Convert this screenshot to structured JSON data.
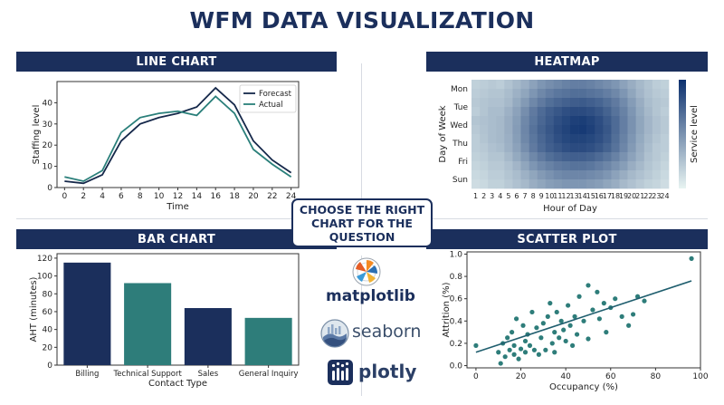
{
  "page": {
    "title": "WFM DATA VISUALIZATION",
    "center_box": "CHOOSE THE RIGHT CHART FOR THE QUESTION"
  },
  "panels": {
    "line": "LINE CHART",
    "heatmap": "HEATMAP",
    "bar": "BAR CHART",
    "scatter": "SCATTER PLOT"
  },
  "logos": {
    "matplotlib": "matplotlib",
    "seaborn": "seaborn",
    "plotly": "plotly"
  },
  "colors": {
    "navy": "#1b2f5c",
    "teal": "#2e7d7a",
    "forecast": "#15284a",
    "actual": "#2a7f7a"
  },
  "chart_data": [
    {
      "type": "line",
      "xlabel": "Time",
      "ylabel": "Staffing level",
      "x": [
        0,
        2,
        4,
        6,
        8,
        10,
        12,
        14,
        16,
        18,
        20,
        22,
        24
      ],
      "xlim": [
        -0.8,
        24.8
      ],
      "ylim": [
        0,
        50
      ],
      "xticks": [
        0,
        2,
        4,
        6,
        8,
        10,
        12,
        14,
        16,
        18,
        20,
        22,
        24
      ],
      "yticks": [
        0,
        10,
        20,
        30,
        40
      ],
      "legend_position": "top-right",
      "series": [
        {
          "name": "Forecast",
          "values": [
            3,
            2,
            6,
            22,
            30,
            33,
            35,
            38,
            47,
            39,
            22,
            13,
            7
          ]
        },
        {
          "name": "Actual",
          "values": [
            5,
            3,
            8,
            26,
            33,
            35,
            36,
            34,
            43,
            35,
            18,
            11,
            5
          ]
        }
      ]
    },
    {
      "type": "heatmap",
      "xlabel": "Hour of Day",
      "ylabel": "Day of Week",
      "colorbar_label": "Service level",
      "x_labels": [
        "1",
        "2",
        "3",
        "4",
        "5",
        "6",
        "7",
        "8",
        "9",
        "10",
        "11",
        "12",
        "13",
        "14",
        "15",
        "16",
        "17",
        "18",
        "19",
        "20",
        "21",
        "22",
        "23",
        "24"
      ],
      "y_labels": [
        "Mon",
        "Tue",
        "Wed",
        "Thu",
        "Fri",
        "Sun"
      ],
      "y_tick_rows": [
        0,
        2,
        4,
        6,
        8,
        10
      ],
      "rows": 12,
      "values": [
        [
          0.18,
          0.2,
          0.22,
          0.2,
          0.25,
          0.3,
          0.35,
          0.42,
          0.48,
          0.52,
          0.55,
          0.58,
          0.6,
          0.6,
          0.58,
          0.55,
          0.52,
          0.48,
          0.42,
          0.36,
          0.3,
          0.25,
          0.2,
          0.18
        ],
        [
          0.2,
          0.22,
          0.24,
          0.24,
          0.28,
          0.34,
          0.4,
          0.48,
          0.55,
          0.6,
          0.64,
          0.66,
          0.68,
          0.68,
          0.66,
          0.64,
          0.6,
          0.55,
          0.48,
          0.4,
          0.32,
          0.26,
          0.22,
          0.2
        ],
        [
          0.22,
          0.24,
          0.26,
          0.26,
          0.3,
          0.38,
          0.46,
          0.55,
          0.62,
          0.68,
          0.72,
          0.75,
          0.77,
          0.78,
          0.76,
          0.73,
          0.68,
          0.62,
          0.54,
          0.45,
          0.36,
          0.28,
          0.24,
          0.22
        ],
        [
          0.2,
          0.24,
          0.28,
          0.28,
          0.34,
          0.42,
          0.52,
          0.62,
          0.7,
          0.76,
          0.8,
          0.84,
          0.86,
          0.86,
          0.84,
          0.8,
          0.74,
          0.66,
          0.58,
          0.48,
          0.38,
          0.3,
          0.24,
          0.2
        ],
        [
          0.24,
          0.26,
          0.28,
          0.3,
          0.36,
          0.44,
          0.55,
          0.64,
          0.72,
          0.78,
          0.84,
          0.88,
          0.92,
          0.93,
          0.9,
          0.85,
          0.78,
          0.7,
          0.6,
          0.5,
          0.4,
          0.32,
          0.26,
          0.22
        ],
        [
          0.22,
          0.25,
          0.28,
          0.3,
          0.36,
          0.45,
          0.56,
          0.66,
          0.74,
          0.8,
          0.86,
          0.9,
          0.94,
          0.95,
          0.92,
          0.86,
          0.8,
          0.7,
          0.6,
          0.5,
          0.4,
          0.32,
          0.26,
          0.22
        ],
        [
          0.2,
          0.24,
          0.28,
          0.3,
          0.35,
          0.44,
          0.55,
          0.64,
          0.72,
          0.78,
          0.84,
          0.88,
          0.9,
          0.9,
          0.88,
          0.84,
          0.78,
          0.68,
          0.58,
          0.48,
          0.38,
          0.3,
          0.24,
          0.2
        ],
        [
          0.2,
          0.22,
          0.26,
          0.28,
          0.34,
          0.42,
          0.52,
          0.62,
          0.7,
          0.76,
          0.8,
          0.84,
          0.86,
          0.86,
          0.84,
          0.8,
          0.74,
          0.66,
          0.56,
          0.46,
          0.36,
          0.28,
          0.22,
          0.2
        ],
        [
          0.18,
          0.2,
          0.24,
          0.24,
          0.3,
          0.38,
          0.46,
          0.55,
          0.62,
          0.68,
          0.72,
          0.75,
          0.76,
          0.76,
          0.74,
          0.7,
          0.65,
          0.58,
          0.5,
          0.42,
          0.34,
          0.26,
          0.22,
          0.18
        ],
        [
          0.16,
          0.18,
          0.22,
          0.22,
          0.26,
          0.32,
          0.4,
          0.48,
          0.54,
          0.58,
          0.62,
          0.64,
          0.66,
          0.66,
          0.64,
          0.6,
          0.56,
          0.5,
          0.44,
          0.36,
          0.3,
          0.24,
          0.2,
          0.16
        ],
        [
          0.14,
          0.16,
          0.2,
          0.2,
          0.24,
          0.28,
          0.34,
          0.4,
          0.46,
          0.5,
          0.54,
          0.56,
          0.56,
          0.56,
          0.54,
          0.52,
          0.48,
          0.42,
          0.36,
          0.3,
          0.26,
          0.22,
          0.18,
          0.14
        ],
        [
          0.12,
          0.14,
          0.18,
          0.18,
          0.22,
          0.26,
          0.3,
          0.36,
          0.4,
          0.44,
          0.46,
          0.48,
          0.48,
          0.48,
          0.46,
          0.44,
          0.4,
          0.36,
          0.3,
          0.26,
          0.22,
          0.18,
          0.16,
          0.12
        ]
      ]
    },
    {
      "type": "bar",
      "xlabel": "Contact Type",
      "ylabel": "AHT (minutes)",
      "categories": [
        "Billing",
        "Technical Support",
        "Sales",
        "General Inquiry"
      ],
      "values": [
        115,
        92,
        64,
        53
      ],
      "bar_colors": [
        "#1b2f5c",
        "#2e7d7a",
        "#1b2f5c",
        "#2e7d7a"
      ],
      "ylim": [
        0,
        125
      ],
      "yticks": [
        0,
        20,
        40,
        60,
        80,
        100,
        120
      ]
    },
    {
      "type": "scatter",
      "xlabel": "Occupancy (%)",
      "ylabel": "Attrition (%)",
      "xlim": [
        -4,
        100
      ],
      "ylim": [
        -0.02,
        1.02
      ],
      "xticks": [
        0,
        20,
        40,
        60,
        80,
        100
      ],
      "yticks": [
        0.0,
        0.2,
        0.4,
        0.6,
        0.8,
        1.0
      ],
      "points": [
        [
          0,
          0.18
        ],
        [
          10,
          0.12
        ],
        [
          11,
          0.02
        ],
        [
          12,
          0.2
        ],
        [
          13,
          0.08
        ],
        [
          14,
          0.25
        ],
        [
          15,
          0.14
        ],
        [
          16,
          0.3
        ],
        [
          17,
          0.18
        ],
        [
          17,
          0.1
        ],
        [
          18,
          0.42
        ],
        [
          19,
          0.06
        ],
        [
          20,
          0.15
        ],
        [
          21,
          0.36
        ],
        [
          22,
          0.22
        ],
        [
          22,
          0.12
        ],
        [
          23,
          0.28
        ],
        [
          24,
          0.18
        ],
        [
          25,
          0.48
        ],
        [
          26,
          0.14
        ],
        [
          27,
          0.34
        ],
        [
          28,
          0.1
        ],
        [
          29,
          0.25
        ],
        [
          30,
          0.38
        ],
        [
          31,
          0.14
        ],
        [
          32,
          0.44
        ],
        [
          33,
          0.56
        ],
        [
          34,
          0.2
        ],
        [
          35,
          0.12
        ],
        [
          35,
          0.3
        ],
        [
          36,
          0.48
        ],
        [
          37,
          0.25
        ],
        [
          38,
          0.4
        ],
        [
          39,
          0.32
        ],
        [
          40,
          0.22
        ],
        [
          41,
          0.54
        ],
        [
          42,
          0.36
        ],
        [
          43,
          0.18
        ],
        [
          44,
          0.44
        ],
        [
          45,
          0.28
        ],
        [
          46,
          0.62
        ],
        [
          48,
          0.4
        ],
        [
          50,
          0.72
        ],
        [
          50,
          0.24
        ],
        [
          52,
          0.5
        ],
        [
          54,
          0.66
        ],
        [
          55,
          0.42
        ],
        [
          57,
          0.56
        ],
        [
          58,
          0.3
        ],
        [
          60,
          0.52
        ],
        [
          62,
          0.6
        ],
        [
          65,
          0.44
        ],
        [
          68,
          0.36
        ],
        [
          70,
          0.46
        ],
        [
          72,
          0.62
        ],
        [
          75,
          0.58
        ],
        [
          96,
          0.96
        ]
      ],
      "trendline": [
        [
          0,
          0.12
        ],
        [
          96,
          0.76
        ]
      ]
    }
  ]
}
